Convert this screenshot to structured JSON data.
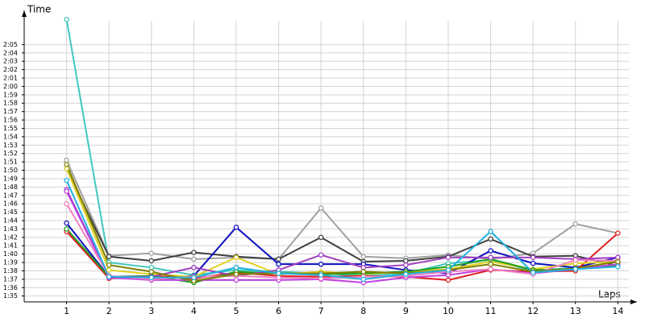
{
  "chart_data": {
    "type": "line",
    "x_label": "Laps",
    "y_label": "Time",
    "x": [
      1,
      2,
      3,
      4,
      5,
      6,
      7,
      8,
      9,
      10,
      11,
      12,
      13,
      14
    ],
    "xlim": [
      0,
      14.45
    ],
    "xticks": [
      1,
      2,
      3,
      4,
      5,
      6,
      7,
      8,
      9,
      10,
      11,
      12,
      13,
      14
    ],
    "ylim": [
      94.3,
      128.3
    ],
    "yticks": [
      {
        "value": 95,
        "label": "1:35"
      },
      {
        "value": 96,
        "label": "1:36"
      },
      {
        "value": 97,
        "label": "1:37"
      },
      {
        "value": 98,
        "label": "1:38"
      },
      {
        "value": 99,
        "label": "1:39"
      },
      {
        "value": 100,
        "label": "1:40"
      },
      {
        "value": 101,
        "label": "1:41"
      },
      {
        "value": 102,
        "label": "1:42"
      },
      {
        "value": 103,
        "label": "1:43"
      },
      {
        "value": 104,
        "label": "1:44"
      },
      {
        "value": 105,
        "label": "1:45"
      },
      {
        "value": 106,
        "label": "1:46"
      },
      {
        "value": 107,
        "label": "1:47"
      },
      {
        "value": 108,
        "label": "1:48"
      },
      {
        "value": 109,
        "label": "1:49"
      },
      {
        "value": 110,
        "label": "1:50"
      },
      {
        "value": 111,
        "label": "1:51"
      },
      {
        "value": 112,
        "label": "1:52"
      },
      {
        "value": 113,
        "label": "1:53"
      },
      {
        "value": 114,
        "label": "1:54"
      },
      {
        "value": 115,
        "label": "1:55"
      },
      {
        "value": 116,
        "label": "1:56"
      },
      {
        "value": 117,
        "label": "1:57"
      },
      {
        "value": 118,
        "label": "1:58"
      },
      {
        "value": 119,
        "label": "1:59"
      },
      {
        "value": 120,
        "label": "2:00"
      },
      {
        "value": 121,
        "label": "2:01"
      },
      {
        "value": 122,
        "label": "2:02"
      },
      {
        "value": 123,
        "label": "2:03"
      },
      {
        "value": 124,
        "label": "2:04"
      },
      {
        "value": 125,
        "label": "2:05"
      }
    ],
    "grid": true,
    "series": [
      {
        "color": "#40c8c0",
        "values": [
          128,
          99.0,
          98.4,
          97.5,
          98.1,
          97.9,
          97.7,
          97.4,
          97.7,
          98.9,
          99.3,
          98.0,
          98.4,
          98.7
        ]
      },
      {
        "color": "#a0a0a0",
        "values": [
          111.2,
          99.8,
          100.1,
          99.4,
          99.6,
          99.4,
          105.5,
          99.7,
          99.5,
          99.9,
          99.4,
          100.1,
          103.6,
          102.5
        ]
      },
      {
        "color": "#404040",
        "values": [
          110.2,
          99.7,
          99.2,
          100.2,
          99.7,
          99.4,
          102.0,
          99.1,
          99.2,
          99.7,
          101.8,
          99.7,
          99.8,
          98.6
        ]
      },
      {
        "color": "#1010c0",
        "values": [
          103.7,
          97.3,
          97.1,
          97.4,
          103.2,
          98.8,
          98.8,
          98.8,
          98.1,
          97.7,
          100.4,
          98.9,
          98.4,
          99.6
        ]
      },
      {
        "color": "#e02020",
        "values": [
          102.7,
          97.1,
          97.4,
          97.1,
          97.8,
          97.4,
          97.3,
          97.4,
          97.3,
          96.9,
          98.1,
          97.9,
          98.0,
          102.5
        ]
      },
      {
        "color": "#e0d020",
        "values": [
          110.2,
          98.1,
          97.6,
          97.3,
          99.6,
          97.6,
          97.9,
          97.6,
          97.9,
          98.2,
          99.1,
          98.2,
          98.9,
          99.1
        ]
      },
      {
        "color": "#20a020",
        "values": [
          103.0,
          97.3,
          97.4,
          96.6,
          97.9,
          97.7,
          97.6,
          97.7,
          97.9,
          98.5,
          99.4,
          98.1,
          98.2,
          98.7
        ]
      },
      {
        "color": "#a040c0",
        "values": [
          107.7,
          97.3,
          97.3,
          98.4,
          97.4,
          98.1,
          99.9,
          98.4,
          98.7,
          99.6,
          99.6,
          99.6,
          99.4,
          99.6
        ]
      },
      {
        "color": "#c040e0",
        "values": [
          107.5,
          97.2,
          96.9,
          96.9,
          96.9,
          96.9,
          97.0,
          96.6,
          97.2,
          97.5,
          98.2,
          97.7,
          98.2,
          98.8
        ]
      },
      {
        "color": "#f080c0",
        "values": [
          106.0,
          97.4,
          97.0,
          97.3,
          97.4,
          97.2,
          97.1,
          97.3,
          97.4,
          97.9,
          98.2,
          97.6,
          99.3,
          99.2
        ]
      },
      {
        "color": "#808000",
        "values": [
          110.7,
          98.7,
          97.9,
          96.8,
          97.6,
          97.7,
          97.7,
          97.9,
          97.7,
          98.1,
          98.8,
          97.9,
          98.3,
          99.1
        ]
      },
      {
        "color": "#20b0e0",
        "values": [
          108.8,
          97.3,
          97.2,
          97.2,
          98.4,
          97.7,
          97.5,
          97.0,
          97.6,
          98.1,
          102.7,
          97.8,
          98.2,
          98.5
        ]
      }
    ]
  }
}
